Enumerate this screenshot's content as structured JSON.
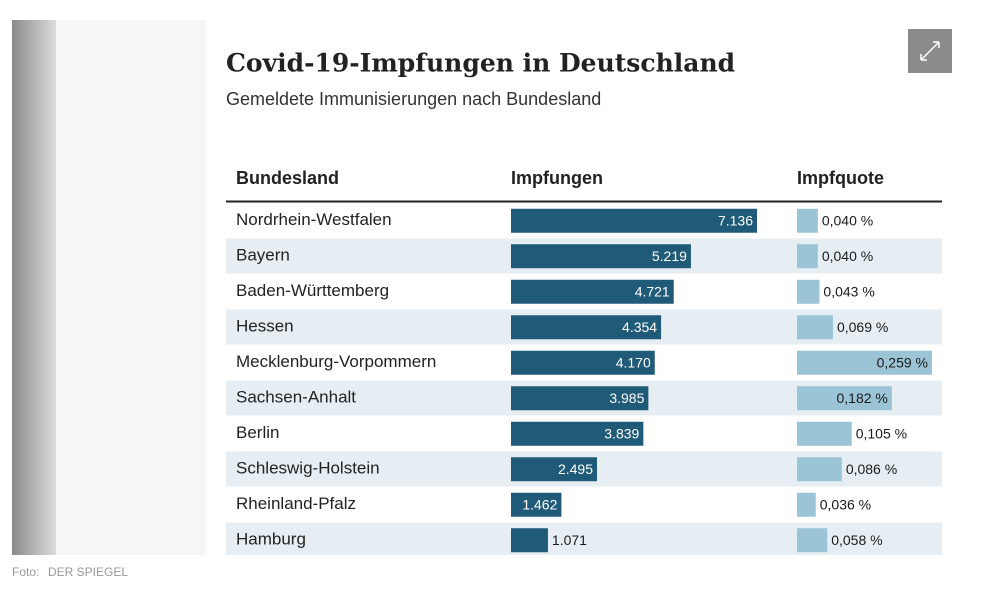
{
  "chart_data": {
    "type": "bar",
    "title": "Covid-19-Impfungen in Deutschland",
    "subtitle": "Gemeldete Immunisierungen nach Bundesland",
    "category_label": "Bundesland",
    "categories": [
      "Nordrhein-Westfalen",
      "Bayern",
      "Baden-Württemberg",
      "Hessen",
      "Mecklenburg-Vorpommern",
      "Sachsen-Anhalt",
      "Berlin",
      "Schleswig-Holstein",
      "Rheinland-Pfalz",
      "Hamburg"
    ],
    "series": [
      {
        "name": "Impfungen",
        "color": "#1f5a78",
        "values": [
          7136,
          5219,
          4721,
          4354,
          4170,
          3985,
          3839,
          2495,
          1462,
          1071
        ],
        "value_labels": [
          "7.136",
          "5.219",
          "4.721",
          "4.354",
          "4.170",
          "3.985",
          "3.839",
          "2.495",
          "1.462",
          "1.071"
        ]
      },
      {
        "name": "Impfquote",
        "color": "#9cc4d7",
        "values": [
          0.04,
          0.04,
          0.043,
          0.069,
          0.259,
          0.182,
          0.105,
          0.086,
          0.036,
          0.058
        ],
        "value_labels": [
          "0,040 %",
          "0,040 %",
          "0,043 %",
          "0,069 %",
          "0,259 %",
          "0,182 %",
          "0,105 %",
          "0,086 %",
          "0,036 %",
          "0,058 %"
        ]
      }
    ]
  },
  "caption": {
    "label": "Foto:",
    "source": "DER SPIEGEL"
  }
}
